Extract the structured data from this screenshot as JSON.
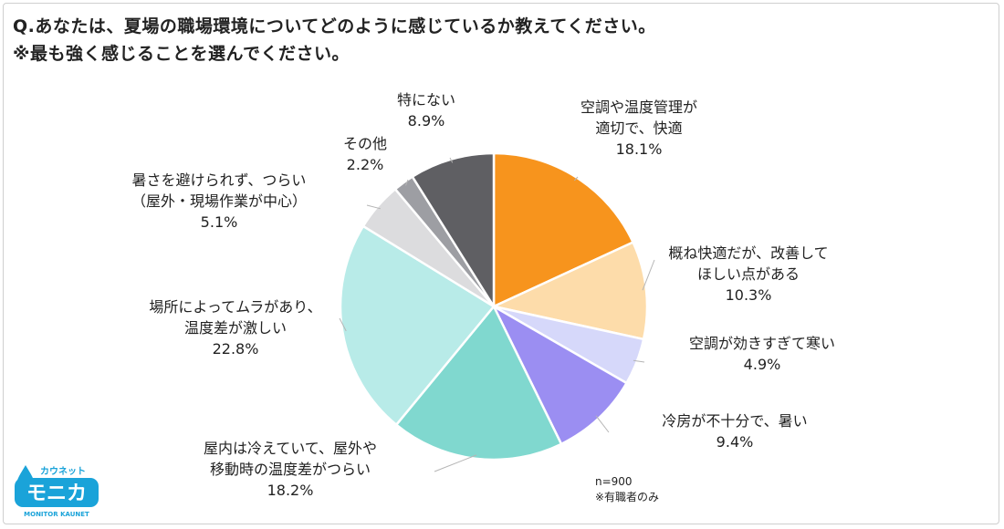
{
  "question": {
    "line1": "Q.あなたは、夏場の職場環境についてどのように感じているか教えてください。",
    "line2": "※最も強く感じることを選んでください。"
  },
  "chart_data": {
    "type": "pie",
    "title": "",
    "start_angle_deg": 0,
    "direction": "clockwise",
    "slices": [
      {
        "label_lines": [
          "空調や温度管理が",
          "適切で、快適"
        ],
        "value": 18.1,
        "value_label": "18.1%",
        "color": "#f7941d"
      },
      {
        "label_lines": [
          "概ね快適だが、改善して",
          "ほしい点がある"
        ],
        "value": 10.3,
        "value_label": "10.3%",
        "color": "#fddcaa"
      },
      {
        "label_lines": [
          "空調が効きすぎて寒い"
        ],
        "value": 4.9,
        "value_label": "4.9%",
        "color": "#d6d8fa"
      },
      {
        "label_lines": [
          "冷房が不十分で、暑い"
        ],
        "value": 9.4,
        "value_label": "9.4%",
        "color": "#9b8ef2"
      },
      {
        "label_lines": [
          "屋内は冷えていて、屋外や",
          "移動時の温度差がつらい"
        ],
        "value": 18.2,
        "value_label": "18.2%",
        "color": "#80d8cf"
      },
      {
        "label_lines": [
          "場所によってムラがあり、",
          "温度差が激しい"
        ],
        "value": 22.8,
        "value_label": "22.8%",
        "color": "#b8ebe8"
      },
      {
        "label_lines": [
          "暑さを避けられず、つらい",
          "（屋外・現場作業が中心）"
        ],
        "value": 5.1,
        "value_label": "5.1%",
        "color": "#dcdcde"
      },
      {
        "label_lines": [
          "その他"
        ],
        "value": 2.2,
        "value_label": "2.2%",
        "color": "#9d9ea3"
      },
      {
        "label_lines": [
          "特にない"
        ],
        "value": 8.9,
        "value_label": "8.9%",
        "color": "#5f5f63"
      }
    ]
  },
  "note": {
    "n": "n=900",
    "sub": "※有職者のみ"
  },
  "logo": {
    "kana": "カウネット",
    "name": "モニカ",
    "sub": "MONITOR KAUNET",
    "color": "#1aa3d9"
  }
}
